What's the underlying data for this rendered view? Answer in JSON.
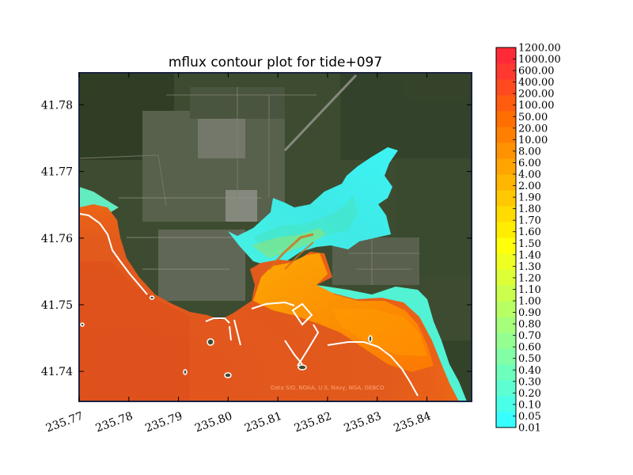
{
  "chart_data": {
    "type": "heatmap",
    "title": "mflux contour plot for tide+097",
    "x_ticks": [
      "235.77",
      "235.78",
      "235.79",
      "235.80",
      "235.81",
      "235.82",
      "235.83",
      "235.84"
    ],
    "x_tick_values": [
      235.77,
      235.78,
      235.79,
      235.8,
      235.81,
      235.82,
      235.83,
      235.84
    ],
    "xlim": [
      235.77,
      235.849
    ],
    "y_ticks": [
      "41.74",
      "41.75",
      "41.76",
      "41.77",
      "41.78"
    ],
    "y_tick_values": [
      41.74,
      41.75,
      41.76,
      41.77,
      41.78
    ],
    "ylim": [
      41.7355,
      41.7848
    ],
    "xlabel": "",
    "ylabel": "",
    "colorbar_levels": [
      "0.01",
      "0.05",
      "0.10",
      "0.20",
      "0.30",
      "0.40",
      "0.50",
      "0.60",
      "0.70",
      "0.80",
      "0.90",
      "1.00",
      "1.10",
      "1.20",
      "1.30",
      "1.40",
      "1.50",
      "1.60",
      "1.70",
      "1.80",
      "1.90",
      "2.00",
      "4.00",
      "6.00",
      "8.00",
      "10.00",
      "20.00",
      "50.00",
      "100.00",
      "200.00",
      "400.00",
      "600.00",
      "1000.00",
      "1200.00"
    ],
    "colorbar_colors": [
      "#38ffff",
      "#4affe8",
      "#5dffd2",
      "#6fffbc",
      "#82ffa6",
      "#94ff90",
      "#a6ff7a",
      "#b8ff64",
      "#cbff4e",
      "#ddff38",
      "#efff22",
      "#ffff0c",
      "#ffed00",
      "#ffdb00",
      "#ffc800",
      "#ffb600",
      "#ffa400",
      "#ff9200",
      "#ff8000",
      "#ff6e00",
      "#ff5c10",
      "#ff4a20",
      "#ff3830",
      "#ff2a38"
    ],
    "grid": false,
    "legend": "colorbar-right"
  },
  "basemap_credit": "Data SIO, NOAA, U.S. Navy, NGA, GEBCO",
  "colors": {
    "land": "#3a4a2e",
    "sea": "#e0521c",
    "shoreline": "#ffffff",
    "axes_frame": "#000000",
    "map_frame": "#1a2340"
  }
}
